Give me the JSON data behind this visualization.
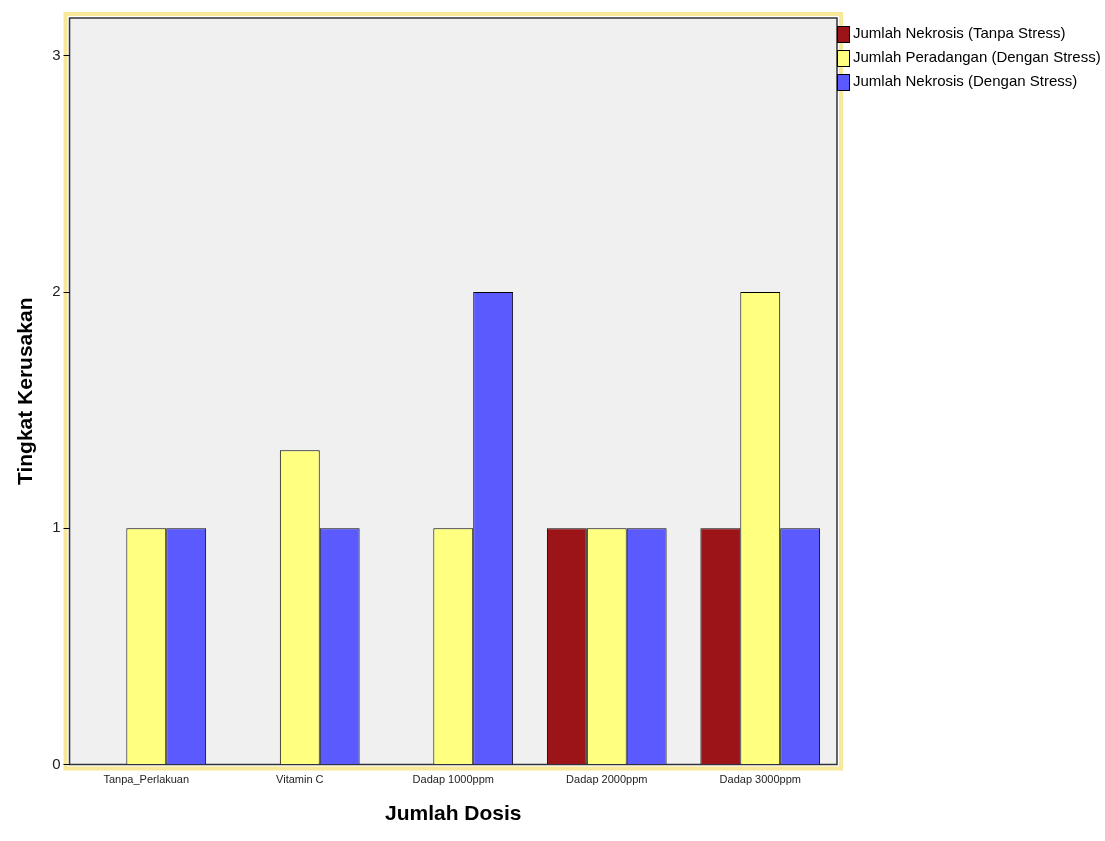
{
  "chart_data": {
    "type": "bar",
    "xlabel": "Jumlah Dosis",
    "ylabel": "Tingkat Kerusakan",
    "categories": [
      "Tanpa_Perlakuan",
      "Vitamin C",
      "Dadap 1000ppm",
      "Dadap 2000ppm",
      "Dadap 3000ppm"
    ],
    "series": [
      {
        "name": "Jumlah Nekrosis (Tanpa Stress)",
        "color": "#9c1418",
        "values": [
          0,
          0,
          0,
          1,
          1
        ]
      },
      {
        "name": "Jumlah Peradangan (Dengan Stress)",
        "color": "#ffff80",
        "values": [
          1,
          1.33,
          1,
          1,
          2
        ]
      },
      {
        "name": "Jumlah Nekrosis (Dengan Stress)",
        "color": "#5a5aff",
        "values": [
          1,
          1,
          2,
          1,
          1
        ]
      }
    ],
    "ylim": [
      0,
      3.16
    ],
    "yticks": [
      0,
      1,
      2,
      3
    ],
    "grid": false,
    "legend": "top right"
  }
}
